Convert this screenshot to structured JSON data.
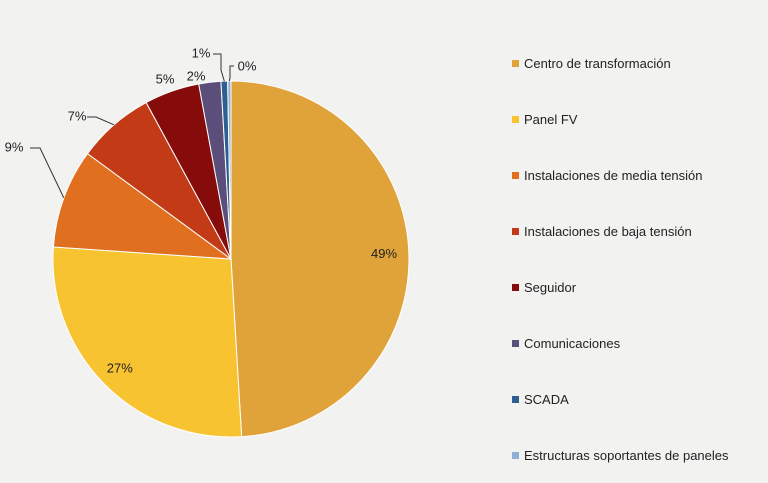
{
  "chart_data": {
    "type": "pie",
    "title": "",
    "slices": [
      {
        "label": "Centro de transformación",
        "value": 49,
        "display": "49%",
        "color": "#e0a33a"
      },
      {
        "label": "Panel FV",
        "value": 27,
        "display": "27%",
        "color": "#f7c331"
      },
      {
        "label": "Instalaciones de media tensión",
        "value": 9,
        "display": "9%",
        "color": "#e06f1f"
      },
      {
        "label": "Instalaciones de baja tensión",
        "value": 7,
        "display": "7%",
        "color": "#c23a16"
      },
      {
        "label": "Seguidor",
        "value": 5,
        "display": "5%",
        "color": "#860c0c"
      },
      {
        "label": "Comunicaciones",
        "value": 2,
        "display": "2%",
        "color": "#5b4e7a"
      },
      {
        "label": "SCADA",
        "value": 0.6,
        "display": "1%",
        "color": "#2f5f90"
      },
      {
        "label": "Estructuras soportantes de paneles",
        "value": 0.3,
        "display": "0%",
        "color": "#8fb0d6"
      }
    ],
    "legend_position": "right"
  }
}
